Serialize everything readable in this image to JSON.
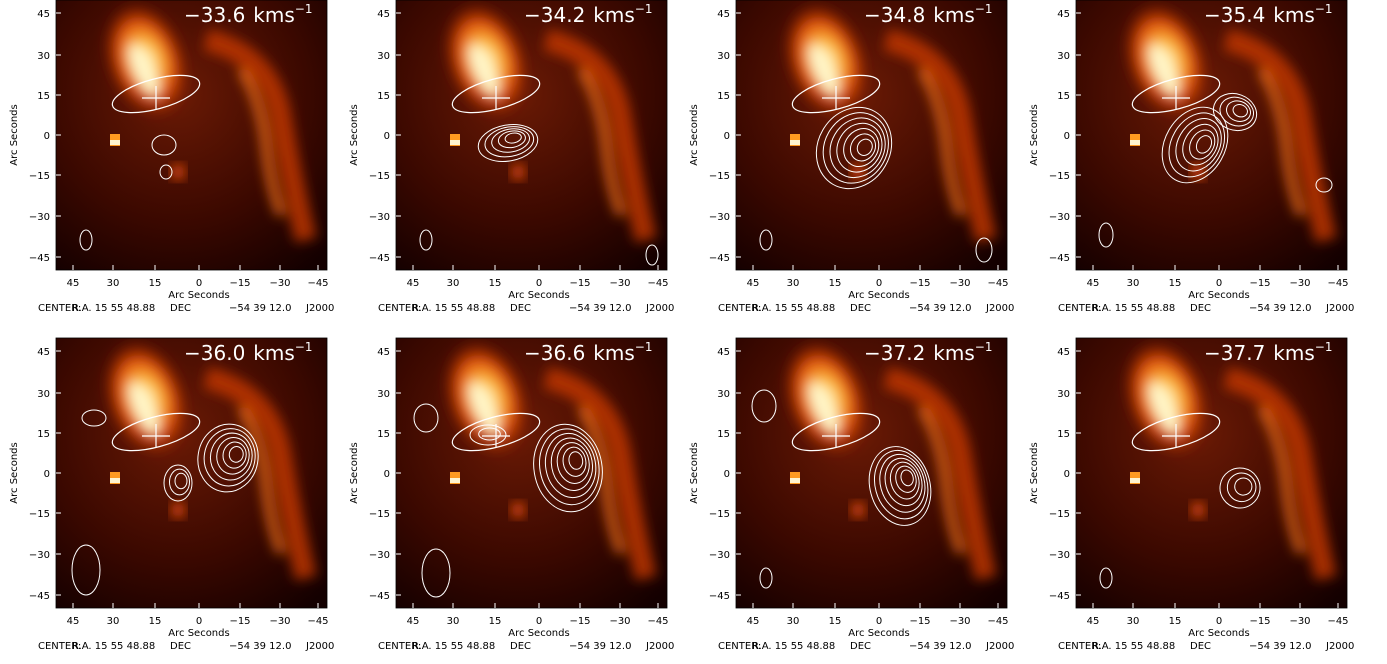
{
  "axes": {
    "x_ticks": [
      "45",
      "30",
      "15",
      "0",
      "−15",
      "−30",
      "−45"
    ],
    "y_ticks": [
      "45",
      "30",
      "15",
      "0",
      "−15",
      "−30",
      "−45"
    ],
    "x_label": "Arc Seconds",
    "y_label": "Arc Seconds",
    "center": [
      "CENTER:",
      "R.A. 15 55 48.88",
      "DEC",
      "−54 39 12.0",
      "J2000"
    ]
  },
  "panels": [
    {
      "velocity": "−33.6",
      "unit": "kms",
      "unit_exp": "−1"
    },
    {
      "velocity": "−34.2",
      "unit": "kms",
      "unit_exp": "−1"
    },
    {
      "velocity": "−34.8",
      "unit": "kms",
      "unit_exp": "−1"
    },
    {
      "velocity": "−35.4",
      "unit": "kms",
      "unit_exp": "−1"
    },
    {
      "velocity": "−36.0",
      "unit": "kms",
      "unit_exp": "−1"
    },
    {
      "velocity": "−36.6",
      "unit": "kms",
      "unit_exp": "−1"
    },
    {
      "velocity": "−37.2",
      "unit": "kms",
      "unit_exp": "−1"
    },
    {
      "velocity": "−37.7",
      "unit": "kms",
      "unit_exp": "−1"
    }
  ]
}
